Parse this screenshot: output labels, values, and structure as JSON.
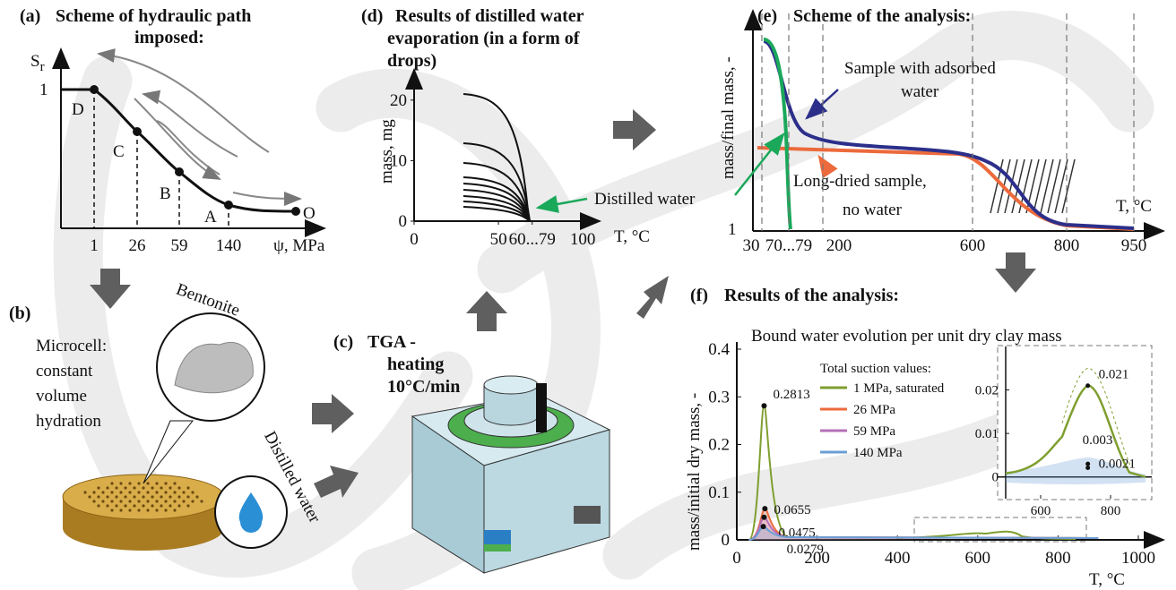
{
  "panel_a": {
    "label": "(a)",
    "title": [
      "Scheme of hydraulic path",
      "imposed:"
    ],
    "y_label": "S",
    "y_label_sub": "r",
    "y_tick": 1,
    "points": [
      "D",
      "C",
      "B",
      "A",
      "O"
    ],
    "x_ticks": [
      1,
      26,
      59,
      140
    ],
    "x_label": "ψ, MPa"
  },
  "panel_b": {
    "label": "(b)",
    "text": [
      "Microcell:",
      "constant",
      "volume",
      "hydration"
    ],
    "bentonite": "Bentonite",
    "distilled_water": "Distilled water"
  },
  "panel_c": {
    "label": "(c)",
    "text": [
      "TGA -",
      "heating",
      "10°C/min"
    ]
  },
  "panel_d": {
    "label": "(d)",
    "title": [
      "Results of distilled water",
      "evaporation (in a form of",
      "drops)"
    ],
    "y_label": "mass, mg",
    "x_label": "T, °C",
    "xlim": [
      0,
      110
    ],
    "ylim": [
      0,
      25
    ],
    "xticks": [
      0,
      50,
      {
        "value": 70,
        "label": "60...79"
      },
      100
    ],
    "yticks": [
      0,
      10,
      20
    ]
  },
  "annotation": "Distilled water",
  "panel_e": {
    "label": "(e)",
    "title": "Scheme of the analysis:",
    "y_label": "mass/final mass, -",
    "y_tick": 1,
    "x_ticks": [
      30,
      "70...79",
      200,
      600,
      800,
      950
    ],
    "x_label": "T, °C",
    "adsorbed": [
      "Sample with adsorbed",
      "water"
    ],
    "dried": [
      "Long-dried sample,",
      "no water"
    ]
  },
  "panel_f": {
    "label": "(f)",
    "title": "Results of the analysis:",
    "chart_title": "Bound water evolution per unit dry clay mass",
    "y_label": "mass/initial dry mass, -",
    "x_label": "T, °C",
    "xlim": [
      0,
      1000
    ],
    "ylim": [
      0,
      0.4
    ],
    "xticks": [
      0,
      200,
      400,
      600,
      800,
      1000
    ],
    "yticks": [
      0,
      0.1,
      0.2,
      0.3,
      0.4
    ],
    "legend_title": "Total suction values:",
    "series": [
      {
        "name": "1 MPa, saturated",
        "color": "#7f9f2f",
        "peak_T": 68,
        "peak_value": 0.2813
      },
      {
        "name": "26 MPa",
        "color": "#ec6a3c",
        "peak_T": 70,
        "peak_value": 0.0655
      },
      {
        "name": "59 MPa",
        "color": "#b36fba",
        "peak_T": 68,
        "peak_value": 0.0475
      },
      {
        "name": "140 MPa",
        "color": "#6a9fd6",
        "peak_T": 66,
        "peak_value": 0.0279
      }
    ],
    "inset": {
      "xlim": [
        500,
        900
      ],
      "ylim": [
        -0.005,
        0.03
      ],
      "xticks": [
        600,
        800
      ],
      "yticks": [
        0,
        0.01,
        0.02
      ],
      "peaks": [
        {
          "T": 735,
          "value": 0.021
        },
        {
          "T": 735,
          "value": 0.003
        },
        {
          "T": 735,
          "value": 0.0021
        }
      ]
    }
  }
}
